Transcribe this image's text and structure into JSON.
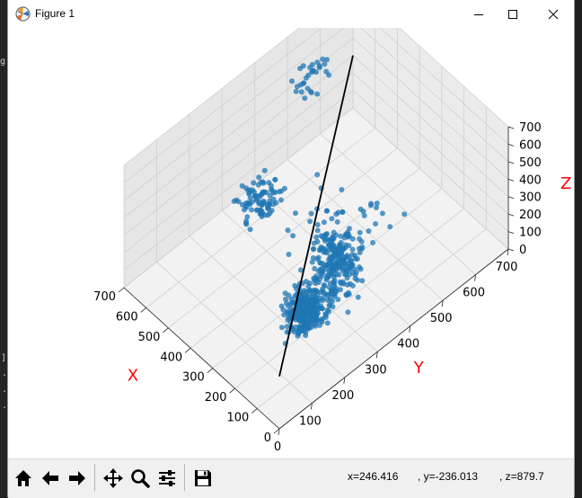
{
  "window": {
    "title": "Figure 1",
    "buttons": [
      "minimize",
      "maximize",
      "close"
    ]
  },
  "background": {
    "fragments": [
      "g:",
      "]",
      ".",
      ".",
      "."
    ]
  },
  "plot": {
    "x_axis_label": "X",
    "y_axis_label": "Y",
    "z_axis_label": "Z",
    "x_ticks": [
      "0",
      "100",
      "200",
      "300",
      "400",
      "500",
      "600",
      "700"
    ],
    "y_ticks": [
      "0",
      "100",
      "200",
      "300",
      "400",
      "500",
      "600",
      "700"
    ],
    "z_ticks": [
      "0",
      "100",
      "200",
      "300",
      "400",
      "500",
      "600",
      "700"
    ],
    "label_color": "#ff0000",
    "point_color": "#1f77b4",
    "line_color": "#000000"
  },
  "chart_data": {
    "type": "scatter",
    "projection": "3d",
    "xlim": [
      0,
      700
    ],
    "ylim": [
      0,
      700
    ],
    "zlim": [
      0,
      700
    ],
    "grid": true,
    "line_segment": {
      "from": [
        700,
        700,
        300
      ],
      "to": [
        0,
        0,
        300
      ]
    },
    "clusters": [
      {
        "center": [
          100,
          150,
          350
        ],
        "spread": [
          50,
          50,
          90
        ],
        "count": 340
      },
      {
        "center": [
          140,
          270,
          380
        ],
        "spread": [
          70,
          60,
          140
        ],
        "count": 220
      },
      {
        "center": [
          350,
          180,
          650
        ],
        "spread": [
          60,
          60,
          80
        ],
        "count": 90
      },
      {
        "center": [
          660,
          550,
          450
        ],
        "spread": [
          40,
          60,
          60
        ],
        "count": 30
      },
      {
        "center": [
          280,
          330,
          350
        ],
        "spread": [
          100,
          90,
          150
        ],
        "count": 45
      },
      {
        "center": [
          300,
          520,
          120
        ],
        "spread": [
          60,
          60,
          80
        ],
        "count": 12
      }
    ]
  },
  "toolbar": {
    "buttons": [
      {
        "name": "home-button",
        "icon": "home-icon"
      },
      {
        "name": "back-button",
        "icon": "arrow-left-icon"
      },
      {
        "name": "forward-button",
        "icon": "arrow-right-icon"
      },
      {
        "name": "pan-button",
        "icon": "move-icon"
      },
      {
        "name": "zoom-button",
        "icon": "magnifier-icon"
      },
      {
        "name": "configure-subplots-button",
        "icon": "sliders-icon"
      },
      {
        "name": "save-button",
        "icon": "floppy-disk-icon"
      }
    ],
    "coords_x": "x=246.416",
    "coords_y": ", y=-236.013",
    "coords_z": ", z=879.7"
  }
}
